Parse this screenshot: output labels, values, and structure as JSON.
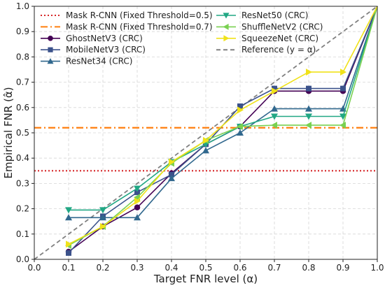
{
  "chart_data": {
    "type": "line",
    "xlabel": "Target FNR level (α)",
    "ylabel": "Empirical FNR (α̂)",
    "xlim": [
      0.0,
      1.0
    ],
    "ylim": [
      0.0,
      1.0
    ],
    "xticks": [
      "0.0",
      "0.1",
      "0.2",
      "0.3",
      "0.4",
      "0.5",
      "0.6",
      "0.7",
      "0.8",
      "0.9",
      "1.0"
    ],
    "yticks": [
      "0.0",
      "0.1",
      "0.2",
      "0.3",
      "0.4",
      "0.5",
      "0.6",
      "0.7",
      "0.8",
      "0.9",
      "1.0"
    ],
    "grid": true,
    "legend_position": "top",
    "hlines": [
      {
        "name": "Mask R-CNN (Fixed Threshold=0.5)",
        "y": 0.35,
        "color": "#d62728",
        "style": "dotted"
      },
      {
        "name": "Mask R-CNN (Fixed Threshold=0.7)",
        "y": 0.52,
        "color": "#ff7f0e",
        "style": "dashdot"
      }
    ],
    "reference": {
      "name": "Reference (y = α)",
      "x": [
        0.0,
        1.0
      ],
      "y": [
        0.0,
        1.0
      ],
      "color": "#808080",
      "style": "dashed"
    },
    "x": [
      0.1,
      0.2,
      0.3,
      0.4,
      0.5,
      0.6,
      0.7,
      0.8,
      0.9,
      1.0
    ],
    "series": [
      {
        "name": "GhostNetV3 (CRC)",
        "color": "#440154",
        "marker": "circle",
        "values": [
          0.03,
          0.13,
          0.205,
          0.34,
          0.455,
          0.525,
          0.665,
          0.665,
          0.665,
          1.0
        ]
      },
      {
        "name": "MobileNetV3 (CRC)",
        "color": "#3b528b",
        "marker": "square",
        "values": [
          0.025,
          0.17,
          0.265,
          0.335,
          0.455,
          0.605,
          0.675,
          0.675,
          0.675,
          1.0
        ]
      },
      {
        "name": "ResNet34 (CRC)",
        "color": "#31688e",
        "marker": "triangle-up",
        "values": [
          0.165,
          0.165,
          0.165,
          0.32,
          0.43,
          0.5,
          0.595,
          0.595,
          0.595,
          1.0
        ]
      },
      {
        "name": "ResNet50 (CRC)",
        "color": "#21a784",
        "marker": "triangle-down",
        "values": [
          0.195,
          0.195,
          0.28,
          0.385,
          0.455,
          0.525,
          0.565,
          0.565,
          0.565,
          1.0
        ]
      },
      {
        "name": "ShuffleNetV2 (CRC)",
        "color": "#7ad151",
        "marker": "triangle-left",
        "values": [
          0.055,
          0.13,
          0.245,
          0.38,
          0.47,
          0.525,
          0.53,
          0.53,
          0.53,
          1.0
        ]
      },
      {
        "name": "SqueezeNet (CRC)",
        "color": "#f0e21a",
        "marker": "triangle-right",
        "values": [
          0.06,
          0.13,
          0.23,
          0.385,
          0.47,
          0.59,
          0.665,
          0.74,
          0.74,
          1.0
        ]
      }
    ]
  }
}
